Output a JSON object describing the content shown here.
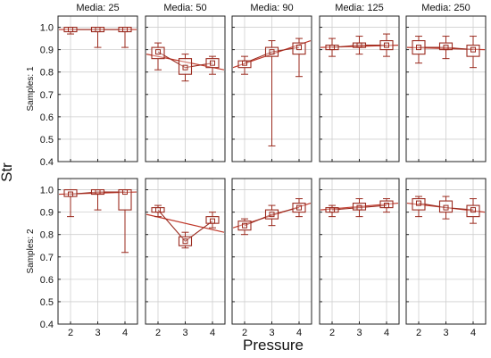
{
  "chart_data": {
    "type": "box",
    "xlabel": "Pressure",
    "ylabel": "Str",
    "ylim": [
      0.4,
      1.05
    ],
    "yticks": [
      "0.4",
      "0.5",
      "0.6",
      "0.7",
      "0.8",
      "0.9",
      "1.0"
    ],
    "xticks": [
      2,
      3,
      4
    ],
    "columns": [
      "Media: 25",
      "Media: 50",
      "Media: 90",
      "Media: 125",
      "Media: 250"
    ],
    "rows": [
      "Samples: 1",
      "Samples: 2"
    ],
    "colors": {
      "mark": "#9a2a1e",
      "fit": "#c0392b",
      "grid": "#cfcfcf",
      "frame": "#222222"
    },
    "panels": [
      {
        "row": 0,
        "col": 0,
        "x": [
          2,
          3,
          4
        ],
        "median": [
          0.99,
          0.99,
          0.99
        ],
        "q1": [
          0.98,
          0.98,
          0.98
        ],
        "q3": [
          1.0,
          1.0,
          1.0
        ],
        "min": [
          0.97,
          0.91,
          0.91
        ],
        "max": [
          1.0,
          1.0,
          1.0
        ],
        "fit": [
          0.99,
          0.99
        ]
      },
      {
        "row": 0,
        "col": 1,
        "x": [
          2,
          3,
          4
        ],
        "median": [
          0.89,
          0.82,
          0.84
        ],
        "q1": [
          0.86,
          0.79,
          0.82
        ],
        "q3": [
          0.91,
          0.86,
          0.86
        ],
        "min": [
          0.81,
          0.76,
          0.79
        ],
        "max": [
          0.93,
          0.88,
          0.87
        ],
        "fit": [
          0.88,
          0.81
        ]
      },
      {
        "row": 0,
        "col": 2,
        "x": [
          2,
          3,
          4
        ],
        "median": [
          0.84,
          0.89,
          0.91
        ],
        "q1": [
          0.82,
          0.87,
          0.88
        ],
        "q3": [
          0.85,
          0.91,
          0.93
        ],
        "min": [
          0.79,
          0.47,
          0.78
        ],
        "max": [
          0.87,
          0.94,
          0.95
        ],
        "fit": [
          0.82,
          0.94
        ]
      },
      {
        "row": 0,
        "col": 3,
        "x": [
          2,
          3,
          4
        ],
        "median": [
          0.91,
          0.92,
          0.92
        ],
        "q1": [
          0.9,
          0.91,
          0.9
        ],
        "q3": [
          0.92,
          0.93,
          0.94
        ],
        "min": [
          0.87,
          0.88,
          0.87
        ],
        "max": [
          0.95,
          0.96,
          0.97
        ],
        "fit": [
          0.91,
          0.92
        ]
      },
      {
        "row": 0,
        "col": 4,
        "x": [
          2,
          3,
          4
        ],
        "median": [
          0.91,
          0.91,
          0.9
        ],
        "q1": [
          0.88,
          0.9,
          0.87
        ],
        "q3": [
          0.94,
          0.93,
          0.92
        ],
        "min": [
          0.84,
          0.86,
          0.82
        ],
        "max": [
          0.96,
          0.96,
          0.96
        ],
        "fit": [
          0.91,
          0.9
        ]
      },
      {
        "row": 1,
        "col": 0,
        "x": [
          2,
          3,
          4
        ],
        "median": [
          0.98,
          0.99,
          0.99
        ],
        "q1": [
          0.97,
          0.98,
          0.91
        ],
        "q3": [
          1.0,
          1.0,
          1.0
        ],
        "min": [
          0.88,
          0.91,
          0.72
        ],
        "max": [
          1.0,
          1.0,
          1.0
        ],
        "fit": [
          0.98,
          0.99
        ]
      },
      {
        "row": 1,
        "col": 1,
        "x": [
          2,
          3,
          4
        ],
        "median": [
          0.91,
          0.77,
          0.86
        ],
        "q1": [
          0.9,
          0.75,
          0.85
        ],
        "q3": [
          0.92,
          0.79,
          0.88
        ],
        "min": [
          0.88,
          0.74,
          0.83
        ],
        "max": [
          0.93,
          0.81,
          0.9
        ],
        "fit": [
          0.89,
          0.81
        ]
      },
      {
        "row": 1,
        "col": 2,
        "x": [
          2,
          3,
          4
        ],
        "median": [
          0.84,
          0.89,
          0.92
        ],
        "q1": [
          0.82,
          0.87,
          0.9
        ],
        "q3": [
          0.86,
          0.91,
          0.94
        ],
        "min": [
          0.8,
          0.84,
          0.88
        ],
        "max": [
          0.87,
          0.93,
          0.96
        ],
        "fit": [
          0.83,
          0.94
        ]
      },
      {
        "row": 1,
        "col": 3,
        "x": [
          2,
          3,
          4
        ],
        "median": [
          0.91,
          0.92,
          0.93
        ],
        "q1": [
          0.9,
          0.91,
          0.92
        ],
        "q3": [
          0.92,
          0.94,
          0.95
        ],
        "min": [
          0.88,
          0.88,
          0.9
        ],
        "max": [
          0.93,
          0.96,
          0.96
        ],
        "fit": [
          0.91,
          0.94
        ]
      },
      {
        "row": 1,
        "col": 4,
        "x": [
          2,
          3,
          4
        ],
        "median": [
          0.94,
          0.92,
          0.91
        ],
        "q1": [
          0.91,
          0.9,
          0.88
        ],
        "q3": [
          0.96,
          0.95,
          0.93
        ],
        "min": [
          0.88,
          0.87,
          0.85
        ],
        "max": [
          0.97,
          0.97,
          0.96
        ],
        "fit": [
          0.94,
          0.9
        ]
      }
    ]
  }
}
